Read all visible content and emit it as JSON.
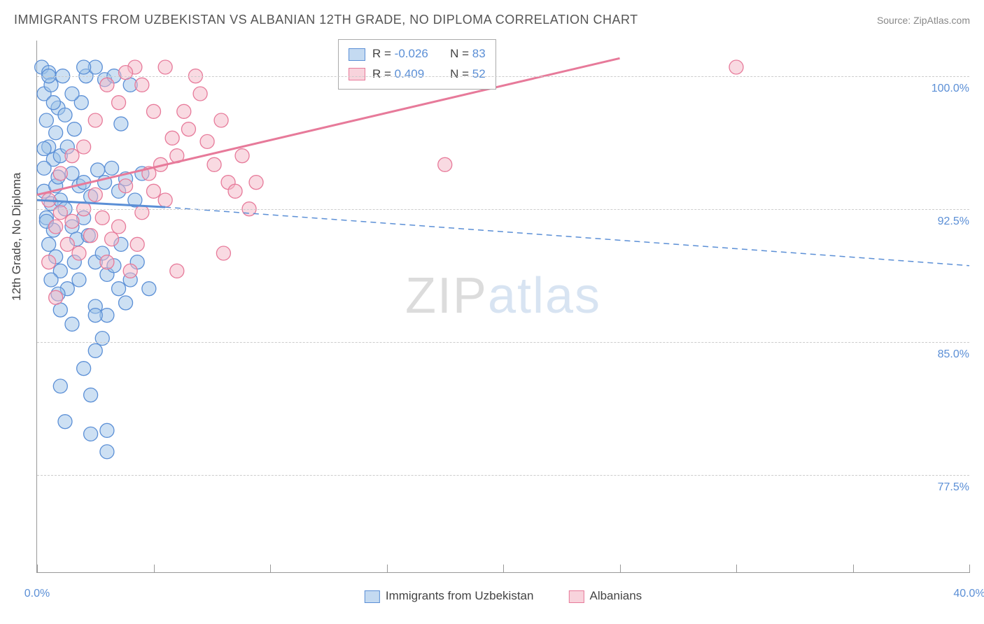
{
  "title": "IMMIGRANTS FROM UZBEKISTAN VS ALBANIAN 12TH GRADE, NO DIPLOMA CORRELATION CHART",
  "source": "Source: ZipAtlas.com",
  "y_axis_label": "12th Grade, No Diploma",
  "watermark": {
    "part1": "ZIP",
    "part2": "atlas"
  },
  "chart": {
    "type": "scatter",
    "xlim": [
      0,
      40
    ],
    "ylim": [
      72,
      102
    ],
    "x_ticks": [
      0,
      5,
      10,
      15,
      20,
      25,
      30,
      35,
      40
    ],
    "x_tick_labels": {
      "0": "0.0%",
      "40": "40.0%"
    },
    "y_gridlines": [
      77.5,
      85.0,
      92.5,
      100.0
    ],
    "y_tick_labels": [
      "77.5%",
      "85.0%",
      "92.5%",
      "100.0%"
    ],
    "background_color": "#ffffff",
    "grid_color": "#cccccc",
    "series": [
      {
        "name": "Immigrants from Uzbekistan",
        "fill": "#9cc1e8",
        "stroke": "#5b8fd6",
        "fill_opacity": 0.5,
        "marker_radius": 10,
        "R": "-0.026",
        "N": "83",
        "trend": {
          "x1": 0,
          "y1": 93.0,
          "x2": 5.5,
          "y2": 92.6,
          "solid": true
        },
        "trend_ext": {
          "x1": 5.5,
          "y1": 92.6,
          "x2": 40,
          "y2": 89.3,
          "solid": false
        },
        "points": [
          [
            0.2,
            100.5
          ],
          [
            0.5,
            100.2
          ],
          [
            0.3,
            99.0
          ],
          [
            0.6,
            99.5
          ],
          [
            0.9,
            98.2
          ],
          [
            0.4,
            97.5
          ],
          [
            0.8,
            96.8
          ],
          [
            0.5,
            96.0
          ],
          [
            0.7,
            95.3
          ],
          [
            0.3,
            94.8
          ],
          [
            1.0,
            95.5
          ],
          [
            1.3,
            96.0
          ],
          [
            1.6,
            97.0
          ],
          [
            1.9,
            98.5
          ],
          [
            2.1,
            100.0
          ],
          [
            2.5,
            100.5
          ],
          [
            2.9,
            99.8
          ],
          [
            3.3,
            100.0
          ],
          [
            3.6,
            97.3
          ],
          [
            4.0,
            99.5
          ],
          [
            0.3,
            93.5
          ],
          [
            0.6,
            92.8
          ],
          [
            0.4,
            92.0
          ],
          [
            0.7,
            91.3
          ],
          [
            0.5,
            90.5
          ],
          [
            0.8,
            89.8
          ],
          [
            1.0,
            93.0
          ],
          [
            1.2,
            92.5
          ],
          [
            1.5,
            91.5
          ],
          [
            1.7,
            90.8
          ],
          [
            2.0,
            92.0
          ],
          [
            2.2,
            91.0
          ],
          [
            1.0,
            89.0
          ],
          [
            1.3,
            88.0
          ],
          [
            1.6,
            89.5
          ],
          [
            1.8,
            88.5
          ],
          [
            0.6,
            88.5
          ],
          [
            0.9,
            87.7
          ],
          [
            2.5,
            89.5
          ],
          [
            2.8,
            90.0
          ],
          [
            3.0,
            88.8
          ],
          [
            3.3,
            89.3
          ],
          [
            3.6,
            90.5
          ],
          [
            2.5,
            87.0
          ],
          [
            3.0,
            86.5
          ],
          [
            3.5,
            88.0
          ],
          [
            3.8,
            87.2
          ],
          [
            4.0,
            88.5
          ],
          [
            4.3,
            89.5
          ],
          [
            4.8,
            88.0
          ],
          [
            1.5,
            94.5
          ],
          [
            1.8,
            93.8
          ],
          [
            2.0,
            94.0
          ],
          [
            2.3,
            93.2
          ],
          [
            2.6,
            94.7
          ],
          [
            2.9,
            94.0
          ],
          [
            3.2,
            94.8
          ],
          [
            3.5,
            93.5
          ],
          [
            3.8,
            94.2
          ],
          [
            4.2,
            93.0
          ],
          [
            4.5,
            94.5
          ],
          [
            0.3,
            95.9
          ],
          [
            2.0,
            100.5
          ],
          [
            2.5,
            86.5
          ],
          [
            1.5,
            86.0
          ],
          [
            0.4,
            91.8
          ],
          [
            1.0,
            86.8
          ],
          [
            0.8,
            93.8
          ],
          [
            0.5,
            100.0
          ],
          [
            1.1,
            100.0
          ],
          [
            1.5,
            99.0
          ],
          [
            1.2,
            97.8
          ],
          [
            0.7,
            98.5
          ],
          [
            0.9,
            94.3
          ],
          [
            1.0,
            82.5
          ],
          [
            2.0,
            83.5
          ],
          [
            2.3,
            82.0
          ],
          [
            2.3,
            79.8
          ],
          [
            2.5,
            84.5
          ],
          [
            2.8,
            85.2
          ],
          [
            3.0,
            80.0
          ],
          [
            3.0,
            78.8
          ],
          [
            1.2,
            80.5
          ]
        ]
      },
      {
        "name": "Albanians",
        "fill": "#f4b6c5",
        "stroke": "#e77a9a",
        "fill_opacity": 0.5,
        "marker_radius": 10,
        "R": "0.409",
        "N": "52",
        "trend": {
          "x1": 0,
          "y1": 93.3,
          "x2": 25,
          "y2": 101.0,
          "solid": true
        },
        "trend_ext": null,
        "points": [
          [
            0.5,
            93.0
          ],
          [
            0.8,
            91.5
          ],
          [
            1.0,
            92.3
          ],
          [
            1.3,
            90.5
          ],
          [
            1.5,
            91.8
          ],
          [
            1.8,
            90.0
          ],
          [
            2.0,
            92.5
          ],
          [
            2.3,
            91.0
          ],
          [
            2.5,
            93.3
          ],
          [
            2.8,
            92.0
          ],
          [
            3.0,
            89.5
          ],
          [
            3.2,
            90.8
          ],
          [
            3.5,
            91.5
          ],
          [
            3.8,
            93.8
          ],
          [
            4.0,
            89.0
          ],
          [
            4.3,
            90.5
          ],
          [
            4.5,
            92.3
          ],
          [
            4.8,
            94.5
          ],
          [
            5.0,
            93.5
          ],
          [
            5.3,
            95.0
          ],
          [
            5.5,
            93.0
          ],
          [
            5.8,
            96.5
          ],
          [
            6.0,
            95.5
          ],
          [
            6.3,
            98.0
          ],
          [
            6.5,
            97.0
          ],
          [
            6.8,
            100.0
          ],
          [
            7.0,
            99.0
          ],
          [
            7.3,
            96.3
          ],
          [
            7.6,
            95.0
          ],
          [
            7.9,
            97.5
          ],
          [
            8.2,
            94.0
          ],
          [
            8.5,
            93.5
          ],
          [
            8.8,
            95.5
          ],
          [
            9.1,
            92.5
          ],
          [
            9.4,
            94.0
          ],
          [
            4.2,
            100.5
          ],
          [
            5.5,
            100.5
          ],
          [
            5.0,
            98.0
          ],
          [
            4.5,
            99.5
          ],
          [
            3.8,
            100.2
          ],
          [
            3.5,
            98.5
          ],
          [
            3.0,
            99.5
          ],
          [
            2.5,
            97.5
          ],
          [
            2.0,
            96.0
          ],
          [
            1.5,
            95.5
          ],
          [
            1.0,
            94.5
          ],
          [
            0.5,
            89.5
          ],
          [
            0.8,
            87.5
          ],
          [
            8.0,
            90.0
          ],
          [
            6.0,
            89.0
          ],
          [
            17.5,
            95.0
          ],
          [
            30.0,
            100.5
          ]
        ]
      }
    ],
    "bottom_legend": [
      {
        "label": "Immigrants from Uzbekistan",
        "fill": "#9cc1e8",
        "stroke": "#5b8fd6"
      },
      {
        "label": "Albanians",
        "fill": "#f4b6c5",
        "stroke": "#e77a9a"
      }
    ]
  },
  "stat_box": {
    "R_label": "R =",
    "N_label": "N ="
  }
}
